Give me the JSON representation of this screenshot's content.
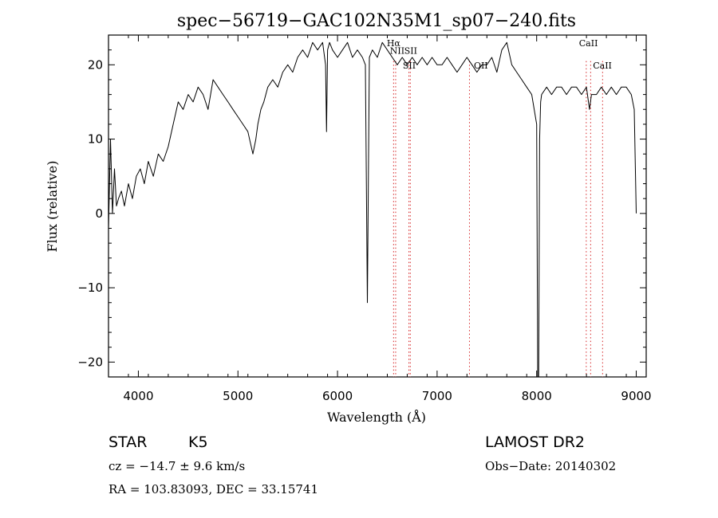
{
  "chart_data": {
    "type": "line",
    "title": "spec−56719−GAC102N35M1_sp07−240.fits",
    "xlabel": "Wavelength (Å)",
    "ylabel": "Flux (relative)",
    "xlim": [
      3700,
      9100
    ],
    "ylim": [
      -22,
      24
    ],
    "x_ticks": [
      4000,
      5000,
      6000,
      7000,
      8000,
      9000
    ],
    "x_tick_labels": [
      "4000",
      "5000",
      "6000",
      "7000",
      "8000",
      "9000"
    ],
    "y_ticks": [
      -20,
      -10,
      0,
      10,
      20
    ],
    "y_tick_labels": [
      "−20",
      "−10",
      "0",
      "10",
      "20"
    ],
    "grid": false,
    "line_color": "#000000",
    "marker_color": "#d62728",
    "series": [
      {
        "x": [
          3700,
          3720,
          3740,
          3760,
          3780,
          3800,
          3830,
          3860,
          3900,
          3940,
          3980,
          4020,
          4060,
          4100,
          4150,
          4200,
          4250,
          4300,
          4350,
          4400,
          4450,
          4500,
          4550,
          4600,
          4650,
          4700,
          4750,
          4800,
          4850,
          4900,
          4950,
          5000,
          5050,
          5100,
          5150,
          5180,
          5200,
          5230,
          5260,
          5300,
          5350,
          5400,
          5450,
          5500,
          5550,
          5600,
          5650,
          5700,
          5750,
          5800,
          5850,
          5880,
          5890,
          5900,
          5920,
          5950,
          6000,
          6050,
          6100,
          6150,
          6200,
          6250,
          6280,
          6300,
          6320,
          6350,
          6400,
          6450,
          6500,
          6550,
          6600,
          6650,
          6700,
          6750,
          6800,
          6850,
          6900,
          6950,
          7000,
          7050,
          7100,
          7150,
          7200,
          7250,
          7300,
          7350,
          7400,
          7450,
          7500,
          7550,
          7600,
          7650,
          7700,
          7750,
          7800,
          7850,
          7900,
          7950,
          8000,
          8010,
          8020,
          8030,
          8040,
          8050,
          8100,
          8150,
          8200,
          8250,
          8300,
          8350,
          8400,
          8450,
          8500,
          8530,
          8550,
          8600,
          8650,
          8700,
          8750,
          8800,
          8850,
          8900,
          8950,
          8980,
          9000
        ],
        "y": [
          -2,
          10,
          0,
          6,
          1,
          2,
          3,
          1,
          4,
          2,
          5,
          6,
          4,
          7,
          5,
          8,
          7,
          9,
          12,
          15,
          14,
          16,
          15,
          17,
          16,
          14,
          18,
          17,
          16,
          15,
          14,
          13,
          12,
          11,
          8,
          10,
          12,
          14,
          15,
          17,
          18,
          17,
          19,
          20,
          19,
          21,
          22,
          21,
          23,
          22,
          23,
          20,
          11,
          22,
          23,
          22,
          21,
          22,
          23,
          21,
          22,
          21,
          20,
          -12,
          21,
          22,
          21,
          23,
          22,
          21,
          20,
          21,
          20,
          21,
          20,
          21,
          20,
          21,
          20,
          20,
          21,
          20,
          19,
          20,
          21,
          20,
          19,
          20,
          20,
          21,
          19,
          22,
          23,
          20,
          19,
          18,
          17,
          16,
          12,
          -22,
          -22,
          10,
          15,
          16,
          17,
          16,
          17,
          17,
          16,
          17,
          17,
          16,
          17,
          14,
          16,
          16,
          17,
          16,
          17,
          16,
          17,
          17,
          16,
          14,
          0
        ]
      }
    ],
    "line_markers": [
      {
        "name": "Hα",
        "x": 6563
      },
      {
        "name": "NII",
        "x": 6584
      },
      {
        "name": "SII",
        "x": 6717
      },
      {
        "name": "SII",
        "x": 6731
      },
      {
        "name": "OII",
        "x": 7325
      },
      {
        "name": "CaII",
        "x": 8498
      },
      {
        "name": "CaII",
        "x": 8542
      },
      {
        "name": "CaII",
        "x": 8662
      }
    ],
    "annotations": [
      {
        "text": "Hα",
        "x": 6563,
        "y": 22.5
      },
      {
        "text": "NII",
        "x": 6600,
        "y": 21.5
      },
      {
        "text": "SII",
        "x": 6735,
        "y": 21.5
      },
      {
        "text": "SII",
        "x": 6720,
        "y": 19.5
      },
      {
        "text": "OII",
        "x": 7440,
        "y": 19.5
      },
      {
        "text": "CaII",
        "x": 8520,
        "y": 22.5
      },
      {
        "text": "CaII",
        "x": 8660,
        "y": 19.5
      }
    ]
  },
  "info": {
    "object_type": "STAR",
    "subclass": "K5",
    "survey": "LAMOST DR2",
    "cz": "cz = −14.7 ± 9.6 km/s",
    "obs_date": "Obs−Date: 20140302",
    "coords": "RA = 103.83093, DEC =  33.15741"
  }
}
